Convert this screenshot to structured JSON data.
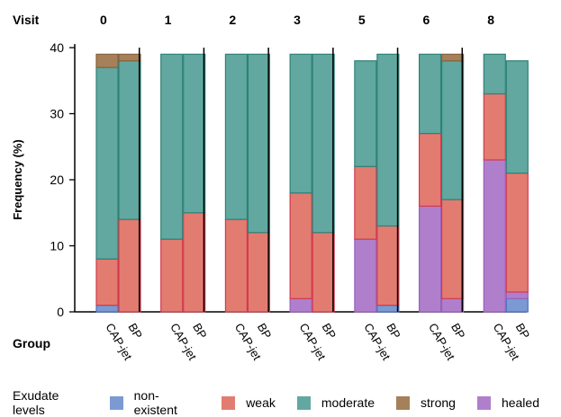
{
  "chart_data": {
    "type": "bar",
    "stacked": true,
    "title": "",
    "ylabel": "Frequency (%)",
    "ylim": [
      0,
      40
    ],
    "yticks": [
      0,
      10,
      20,
      30,
      40
    ],
    "facet_label": "Visit",
    "group_label": "Group",
    "facets": [
      "0",
      "1",
      "2",
      "3",
      "5",
      "6",
      "8"
    ],
    "groups": [
      "CAP-jet",
      "BP"
    ],
    "series": [
      {
        "name": "non-existent",
        "color": "#7b9ad3",
        "border": "#4a72c4",
        "values": [
          [
            1,
            0
          ],
          [
            0,
            0
          ],
          [
            0,
            0
          ],
          [
            0,
            0
          ],
          [
            0,
            1
          ],
          [
            0,
            0
          ],
          [
            0,
            2
          ]
        ]
      },
      {
        "name": "healed",
        "color": "#b07fcc",
        "border": "#9a5fbd",
        "values": [
          [
            0,
            0
          ],
          [
            0,
            0
          ],
          [
            0,
            0
          ],
          [
            2,
            0
          ],
          [
            11,
            0
          ],
          [
            16,
            2
          ],
          [
            23,
            1
          ]
        ]
      },
      {
        "name": "weak",
        "color": "#e27c70",
        "border": "#d23a4f",
        "values": [
          [
            7,
            14
          ],
          [
            11,
            15
          ],
          [
            14,
            12
          ],
          [
            16,
            12
          ],
          [
            11,
            12
          ],
          [
            11,
            15
          ],
          [
            10,
            18
          ]
        ]
      },
      {
        "name": "moderate",
        "color": "#62a8a0",
        "border": "#2e8277",
        "values": [
          [
            29,
            24
          ],
          [
            28,
            24
          ],
          [
            25,
            27
          ],
          [
            21,
            27
          ],
          [
            16,
            26
          ],
          [
            12,
            21
          ],
          [
            6,
            17
          ]
        ]
      },
      {
        "name": "strong",
        "color": "#a58058",
        "border": "#866341",
        "values": [
          [
            2,
            1
          ],
          [
            0,
            0
          ],
          [
            0,
            0
          ],
          [
            0,
            0
          ],
          [
            0,
            0
          ],
          [
            0,
            1
          ],
          [
            0,
            0
          ]
        ]
      }
    ],
    "legend": {
      "title": "Exudate levels",
      "position": "bottom",
      "items": [
        {
          "label": "non-existent",
          "color": "#7b9ad3"
        },
        {
          "label": "weak",
          "color": "#e27c70"
        },
        {
          "label": "moderate",
          "color": "#62a8a0"
        },
        {
          "label": "strong",
          "color": "#a58058"
        },
        {
          "label": "healed",
          "color": "#b07fcc"
        }
      ]
    },
    "grid": false
  }
}
